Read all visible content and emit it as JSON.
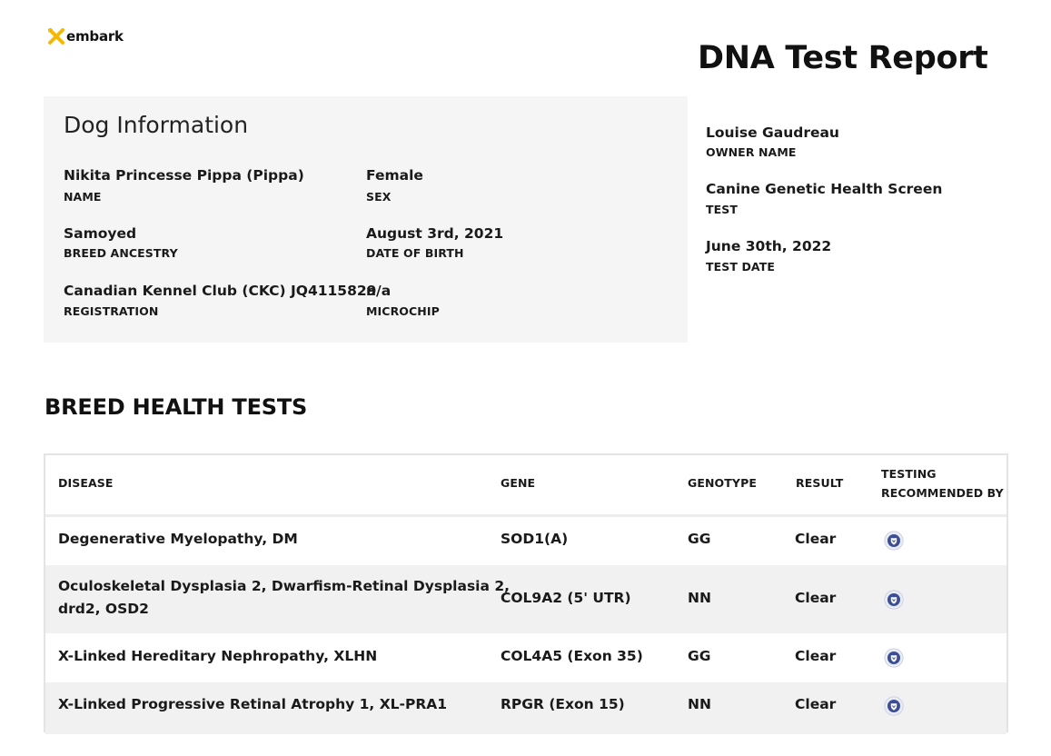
{
  "brand": {
    "name": "embark",
    "accent": "#f5b800"
  },
  "report_title": "DNA Test Report",
  "dog_info": {
    "title": "Dog Information",
    "fields": [
      {
        "value": "Nikita Princesse Pippa (Pippa)",
        "label": "NAME"
      },
      {
        "value": "Female",
        "label": "SEX"
      },
      {
        "value": "Samoyed",
        "label": "BREED ANCESTRY"
      },
      {
        "value": "August 3rd, 2021",
        "label": "DATE OF BIRTH"
      },
      {
        "value": "Canadian Kennel Club (CKC) JQ4115829",
        "label": "REGISTRATION"
      },
      {
        "value": "n/a",
        "label": "MICROCHIP"
      }
    ]
  },
  "owner_info": [
    {
      "value": "Louise Gaudreau",
      "label": "OWNER NAME"
    },
    {
      "value": "Canine Genetic Health Screen",
      "label": "TEST"
    },
    {
      "value": "June 30th, 2022",
      "label": "TEST DATE"
    }
  ],
  "health_tests": {
    "title": "BREED HEALTH TESTS",
    "columns": [
      "DISEASE",
      "GENE",
      "GENOTYPE",
      "RESULT",
      "TESTING",
      "RECOMMENDED BY"
    ],
    "rows": [
      {
        "disease": "Degenerative Myelopathy, DM",
        "gene": "SOD1(A)",
        "genotype": "GG",
        "result": "Clear",
        "recommended_icon": "shield-badge-icon"
      },
      {
        "disease": "Oculoskeletal Dysplasia 2, Dwarfism-Retinal Dysplasia 2,",
        "disease_line2": "drd2, OSD2",
        "gene": "COL9A2 (5' UTR)",
        "genotype": "NN",
        "result": "Clear",
        "recommended_icon": "shield-badge-icon"
      },
      {
        "disease": "X-Linked Hereditary Nephropathy, XLHN",
        "gene": "COL4A5 (Exon 35)",
        "genotype": "GG",
        "result": "Clear",
        "recommended_icon": "shield-badge-icon"
      },
      {
        "disease": "X-Linked Progressive Retinal Atrophy 1, XL-PRA1",
        "gene": "RPGR (Exon 15)",
        "genotype": "NN",
        "result": "Clear",
        "recommended_icon": "shield-badge-icon"
      }
    ]
  }
}
